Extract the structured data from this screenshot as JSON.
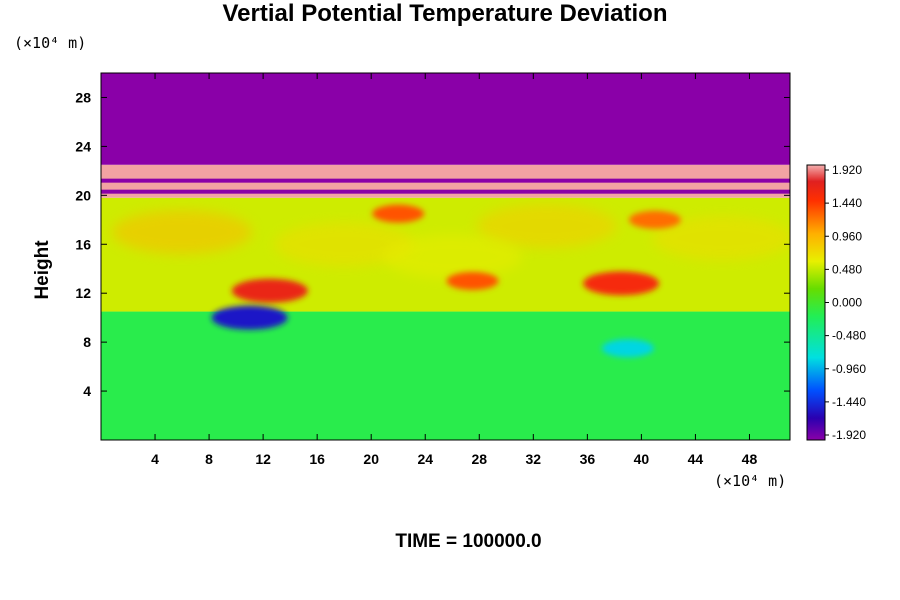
{
  "title": "Vertial Potential Temperature Deviation",
  "y_unit": "(×10⁴ m)",
  "x_unit": "(×10⁴ m)",
  "ylabel": "Height",
  "time_label": "TIME = 100000.0",
  "chart_data": {
    "type": "heatmap",
    "title": "Vertial Potential Temperature Deviation",
    "ylabel": "Height",
    "xlabel": "",
    "xlim": [
      0,
      51
    ],
    "ylim": [
      0,
      30
    ],
    "x_ticks": [
      4,
      8,
      12,
      16,
      20,
      24,
      28,
      32,
      36,
      40,
      44,
      48
    ],
    "y_ticks": [
      4,
      8,
      12,
      16,
      20,
      24,
      28
    ],
    "colorbar_labels": [
      "1.920",
      "1.440",
      "0.960",
      "0.480",
      "0.000",
      "-0.480",
      "-0.960",
      "-1.440",
      "-1.920"
    ],
    "colorbar_range": [
      -1.92,
      1.92
    ],
    "colors": {
      "low": "#8a00a8",
      "high": "#f4b0b0",
      "zero": "#33dd33",
      "lower_layer": "#22ee55"
    },
    "layers": [
      {
        "y_from": 0,
        "y_to": 10.5,
        "value": -0.15
      },
      {
        "y_from": 10.5,
        "y_to": 19.8,
        "value": 0.5
      },
      {
        "y_from": 19.8,
        "y_to": 22.5,
        "value": 1.9
      },
      {
        "y_from": 22.5,
        "y_to": 30,
        "value": -1.92
      }
    ],
    "features": [
      {
        "x": 12.5,
        "y": 12.2,
        "value": 1.6
      },
      {
        "x": 27.5,
        "y": 13.0,
        "value": 1.3
      },
      {
        "x": 38.5,
        "y": 12.8,
        "value": 1.5
      },
      {
        "x": 22.0,
        "y": 18.5,
        "value": 1.3
      },
      {
        "x": 41.0,
        "y": 18.0,
        "value": 1.2
      },
      {
        "x": 11.0,
        "y": 10.0,
        "value": -1.5
      },
      {
        "x": 39.0,
        "y": 7.5,
        "value": -0.8
      }
    ]
  }
}
